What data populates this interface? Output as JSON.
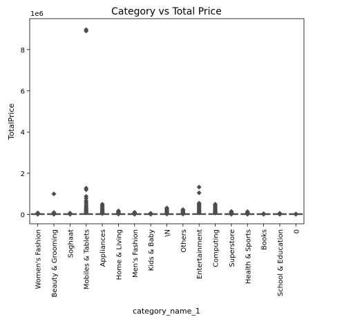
{
  "chart_data": {
    "type": "box",
    "title": "Category vs Total Price",
    "xlabel": "category_name_1",
    "ylabel": "TotalPrice",
    "y_offset_label": "1e6",
    "y_ticks": [
      0,
      2,
      4,
      6,
      8
    ],
    "ylim": [
      -0.45,
      9.5
    ],
    "categories": [
      "Women's Fashion",
      "Beauty & Grooming",
      "Soghaat",
      "Mobiles & Tablets",
      "Appliances",
      "Home & Living",
      "Men's Fashion",
      "Kids & Baby",
      "\\N",
      "Others",
      "Entertainment",
      "Computing",
      "Superstore",
      "Health & Sports",
      "Books",
      "School & Education",
      "0"
    ],
    "box_color": "#4c4c4c",
    "median_color": "#4c72b0",
    "series": [
      {
        "category": "Women's Fashion",
        "q1": 0.0,
        "median": 0.0,
        "q3": 0.0,
        "whisker_low": 0.0,
        "whisker_high": 0.002,
        "outliers": [
          0.01,
          0.02,
          0.04,
          0.06,
          0.08
        ]
      },
      {
        "category": "Beauty & Grooming",
        "q1": 0.0,
        "median": 0.0,
        "q3": 0.0,
        "whisker_low": 0.0,
        "whisker_high": 0.002,
        "outliers": [
          0.01,
          0.02,
          0.05,
          0.08,
          0.1,
          1.0
        ]
      },
      {
        "category": "Soghaat",
        "q1": 0.0,
        "median": 0.0,
        "q3": 0.0,
        "whisker_low": 0.0,
        "whisker_high": 0.002,
        "outliers": [
          0.01,
          0.03,
          0.05,
          0.07
        ]
      },
      {
        "category": "Mobiles & Tablets",
        "q1": 0.0,
        "median": 0.01,
        "q3": 0.02,
        "whisker_low": 0.0,
        "whisker_high": 0.05,
        "outliers": [
          0.08,
          0.12,
          0.16,
          0.2,
          0.25,
          0.3,
          0.36,
          0.42,
          0.5,
          0.58,
          0.66,
          0.78,
          0.88,
          1.2,
          1.28,
          8.9,
          8.97
        ]
      },
      {
        "category": "Appliances",
        "q1": 0.0,
        "median": 0.0,
        "q3": 0.01,
        "whisker_low": 0.0,
        "whisker_high": 0.02,
        "outliers": [
          0.04,
          0.07,
          0.1,
          0.14,
          0.18,
          0.22,
          0.27,
          0.32,
          0.38,
          0.44,
          0.5
        ]
      },
      {
        "category": "Home & Living",
        "q1": 0.0,
        "median": 0.0,
        "q3": 0.0,
        "whisker_low": 0.0,
        "whisker_high": 0.004,
        "outliers": [
          0.02,
          0.04,
          0.07,
          0.1,
          0.14,
          0.18
        ]
      },
      {
        "category": "Men's Fashion",
        "q1": 0.0,
        "median": 0.0,
        "q3": 0.0,
        "whisker_low": 0.0,
        "whisker_high": 0.002,
        "outliers": [
          0.01,
          0.03,
          0.05,
          0.08,
          0.11
        ]
      },
      {
        "category": "Kids & Baby",
        "q1": 0.0,
        "median": 0.0,
        "q3": 0.0,
        "whisker_low": 0.0,
        "whisker_high": 0.002,
        "outliers": [
          0.01,
          0.02,
          0.04,
          0.06
        ]
      },
      {
        "category": "\\N",
        "q1": 0.0,
        "median": 0.0,
        "q3": 0.0,
        "whisker_low": 0.0,
        "whisker_high": 0.003,
        "outliers": [
          0.02,
          0.05,
          0.09,
          0.13,
          0.17,
          0.22,
          0.27,
          0.32
        ]
      },
      {
        "category": "Others",
        "q1": 0.0,
        "median": 0.0,
        "q3": 0.0,
        "whisker_low": 0.0,
        "whisker_high": 0.003,
        "outliers": [
          0.02,
          0.05,
          0.08,
          0.12,
          0.16,
          0.2,
          0.24
        ]
      },
      {
        "category": "Entertainment",
        "q1": 0.0,
        "median": 0.01,
        "q3": 0.02,
        "whisker_low": 0.0,
        "whisker_high": 0.05,
        "outliers": [
          0.08,
          0.12,
          0.16,
          0.2,
          0.25,
          0.3,
          0.35,
          0.4,
          0.45,
          0.5,
          0.55,
          1.05,
          1.33
        ]
      },
      {
        "category": "Computing",
        "q1": 0.0,
        "median": 0.01,
        "q3": 0.02,
        "whisker_low": 0.0,
        "whisker_high": 0.04,
        "outliers": [
          0.07,
          0.1,
          0.14,
          0.18,
          0.22,
          0.27,
          0.32,
          0.38,
          0.44,
          0.5
        ]
      },
      {
        "category": "Superstore",
        "q1": 0.0,
        "median": 0.0,
        "q3": 0.0,
        "whisker_low": 0.0,
        "whisker_high": 0.002,
        "outliers": [
          0.01,
          0.03,
          0.06,
          0.09,
          0.12,
          0.15
        ]
      },
      {
        "category": "Health & Sports",
        "q1": 0.0,
        "median": 0.0,
        "q3": 0.0,
        "whisker_low": 0.0,
        "whisker_high": 0.002,
        "outliers": [
          0.01,
          0.03,
          0.05,
          0.08,
          0.11,
          0.14
        ]
      },
      {
        "category": "Books",
        "q1": 0.0,
        "median": 0.0,
        "q3": 0.0,
        "whisker_low": 0.0,
        "whisker_high": 0.001,
        "outliers": [
          0.01,
          0.02,
          0.04
        ]
      },
      {
        "category": "School & Education",
        "q1": 0.0,
        "median": 0.0,
        "q3": 0.0,
        "whisker_low": 0.0,
        "whisker_high": 0.001,
        "outliers": [
          0.01,
          0.02,
          0.04,
          0.06
        ]
      },
      {
        "category": "0",
        "q1": 0.0,
        "median": 0.0,
        "q3": 0.0,
        "whisker_low": 0.0,
        "whisker_high": 0.001,
        "outliers": [
          0.01,
          0.02,
          0.03
        ]
      }
    ]
  }
}
